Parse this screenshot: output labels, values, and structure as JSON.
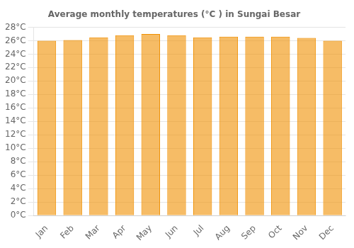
{
  "chart_data": {
    "type": "bar",
    "title": "Average monthly temperatures (°C ) in Sungai Besar",
    "categories": [
      "Jan",
      "Feb",
      "Mar",
      "Apr",
      "May",
      "Jun",
      "Jul",
      "Aug",
      "Sep",
      "Oct",
      "Nov",
      "Dec"
    ],
    "values": [
      26.0,
      26.1,
      26.5,
      26.8,
      27.0,
      26.8,
      26.5,
      26.6,
      26.6,
      26.6,
      26.4,
      26.0
    ],
    "color": "#F09000",
    "ylim": [
      0,
      28
    ],
    "yticks": [
      {
        "value": 0,
        "label": "0°C"
      },
      {
        "value": 2,
        "label": "2°C"
      },
      {
        "value": 4,
        "label": "4°C"
      },
      {
        "value": 6,
        "label": "6°C"
      },
      {
        "value": 8,
        "label": "8°C"
      },
      {
        "value": 10,
        "label": "10°C"
      },
      {
        "value": 12,
        "label": "12°C"
      },
      {
        "value": 14,
        "label": "14°C"
      },
      {
        "value": 16,
        "label": "16°C"
      },
      {
        "value": 18,
        "label": "18°C"
      },
      {
        "value": 20,
        "label": "20°C"
      },
      {
        "value": 22,
        "label": "22°C"
      },
      {
        "value": 24,
        "label": "24°C"
      },
      {
        "value": 26,
        "label": "26°C"
      },
      {
        "value": 28,
        "label": "28°C"
      }
    ],
    "grid": true
  }
}
